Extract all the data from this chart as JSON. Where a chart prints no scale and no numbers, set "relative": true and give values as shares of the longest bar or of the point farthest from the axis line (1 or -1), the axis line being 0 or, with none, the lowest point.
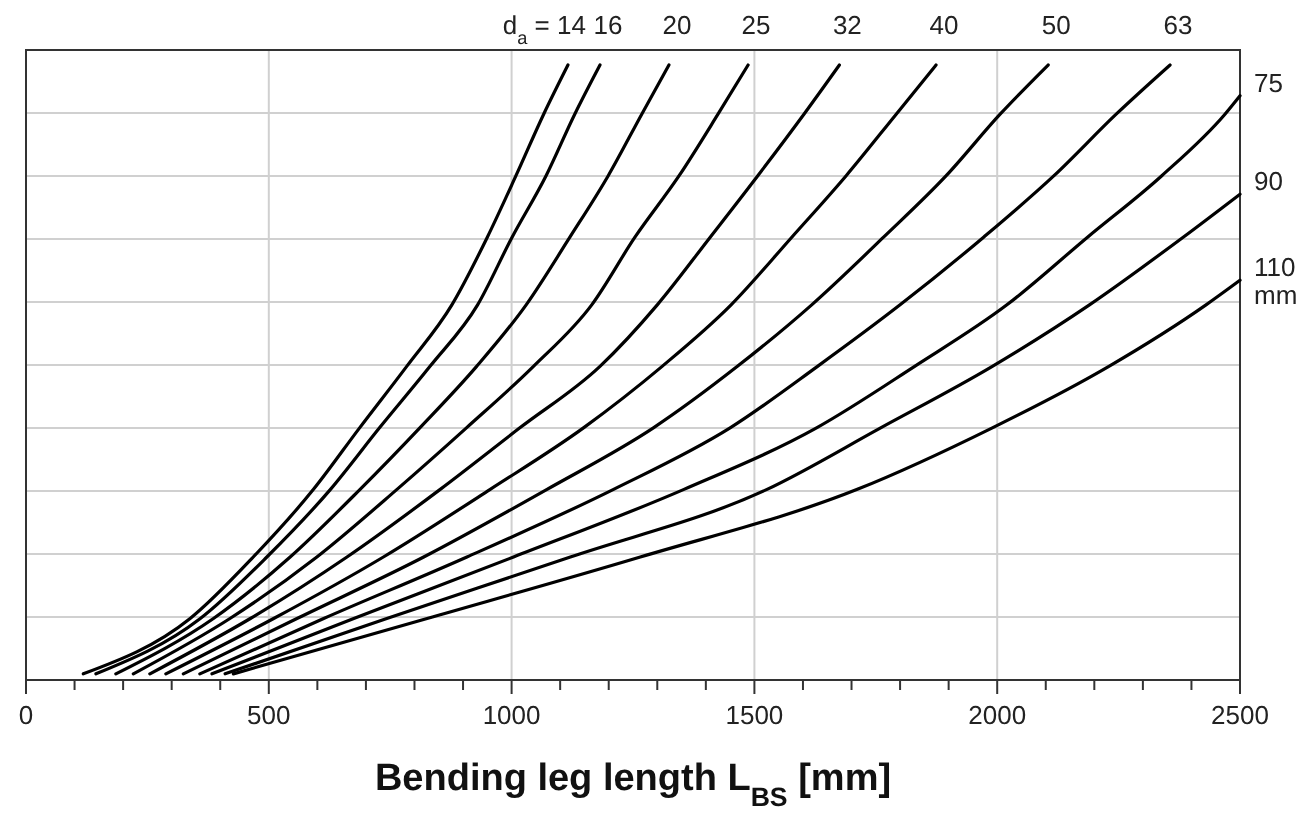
{
  "chart_data": {
    "type": "line",
    "relative": true,
    "xlabel": "Bending leg length L$_{BS}$ [mm]",
    "xlim": [
      0,
      2500
    ],
    "xticks": [
      0,
      {
        "value": 100,
        "label": null
      },
      {
        "value": 200,
        "label": null
      },
      {
        "value": 300,
        "label": null
      },
      {
        "value": 400,
        "label": null
      },
      500,
      {
        "value": 600,
        "label": null
      },
      {
        "value": 700,
        "label": null
      },
      {
        "value": 800,
        "label": null
      },
      {
        "value": 900,
        "label": null
      },
      1000,
      {
        "value": 1100,
        "label": null
      },
      {
        "value": 1200,
        "label": null
      },
      {
        "value": 1300,
        "label": null
      },
      {
        "value": 1400,
        "label": null
      },
      1500,
      {
        "value": 1600,
        "label": null
      },
      {
        "value": 1700,
        "label": null
      },
      {
        "value": 1800,
        "label": null
      },
      {
        "value": 1900,
        "label": null
      },
      2000,
      {
        "value": 2100,
        "label": null
      },
      {
        "value": 2200,
        "label": null
      },
      {
        "value": 2300,
        "label": null
      },
      {
        "value": 2400,
        "label": null
      },
      2500
    ],
    "grid": true,
    "marker": "none",
    "line_style": "solid",
    "annotations": [
      "mm"
    ],
    "series": [
      {
        "name": "d$_{a}$ = 14",
        "color": "#000000",
        "x": [
          118,
          338,
          468,
          592,
          687,
          784,
          877,
          950,
          1009,
          1066,
          1116
        ],
        "values": [
          0.01,
          0.1,
          0.2,
          0.31,
          0.41,
          0.51,
          0.61,
          0.72,
          0.82,
          0.92,
          1
        ]
      },
      {
        "name": "16",
        "color": "#000000",
        "x": [
          144,
          359,
          496,
          627,
          728,
          832,
          930,
          1001,
          1071,
          1130,
          1182
        ],
        "values": [
          0.01,
          0.1,
          0.2,
          0.31,
          0.41,
          0.51,
          0.61,
          0.72,
          0.82,
          0.92,
          1
        ]
      },
      {
        "name": "20",
        "color": "#000000",
        "x": [
          185,
          386,
          544,
          688,
          811,
          928,
          1030,
          1120,
          1199,
          1268,
          1324
        ],
        "values": [
          0.01,
          0.1,
          0.2,
          0.31,
          0.41,
          0.51,
          0.61,
          0.72,
          0.82,
          0.92,
          1
        ]
      },
      {
        "name": "25",
        "color": "#000000",
        "x": [
          221,
          420,
          599,
          764,
          907,
          1045,
          1165,
          1254,
          1345,
          1425,
          1487
        ],
        "values": [
          0.01,
          0.1,
          0.2,
          0.31,
          0.41,
          0.51,
          0.61,
          0.72,
          0.82,
          0.92,
          1
        ]
      },
      {
        "name": "32",
        "color": "#000000",
        "x": [
          255,
          462,
          661,
          853,
          1017,
          1182,
          1300,
          1409,
          1507,
          1602,
          1675
        ],
        "values": [
          0.01,
          0.1,
          0.2,
          0.31,
          0.41,
          0.51,
          0.61,
          0.72,
          0.82,
          0.92,
          1
        ]
      },
      {
        "name": "40",
        "color": "#000000",
        "x": [
          288,
          510,
          736,
          956,
          1148,
          1310,
          1452,
          1577,
          1689,
          1792,
          1874
        ],
        "values": [
          0.01,
          0.1,
          0.2,
          0.31,
          0.41,
          0.51,
          0.61,
          0.72,
          0.82,
          0.92,
          1
        ]
      },
      {
        "name": "50",
        "color": "#000000",
        "x": [
          324,
          558,
          819,
          1073,
          1292,
          1465,
          1618,
          1766,
          1895,
          2006,
          2105
        ],
        "values": [
          0.01,
          0.1,
          0.2,
          0.31,
          0.41,
          0.51,
          0.61,
          0.72,
          0.82,
          0.92,
          1
        ]
      },
      {
        "name": "63",
        "color": "#000000",
        "x": [
          358,
          613,
          908,
          1210,
          1450,
          1630,
          1800,
          1972,
          2117,
          2245,
          2356
        ],
        "values": [
          0.01,
          0.1,
          0.2,
          0.31,
          0.41,
          0.51,
          0.61,
          0.72,
          0.82,
          0.92,
          1
        ]
      },
      {
        "name": "75",
        "color": "#000000",
        "x": [
          383,
          675,
          1004,
          1355,
          1628,
          1830,
          2020,
          2186,
          2339,
          2469,
          2500
        ],
        "values": [
          0.01,
          0.1,
          0.2,
          0.31,
          0.41,
          0.51,
          0.61,
          0.72,
          0.82,
          0.92,
          0.95
        ]
      },
      {
        "name": "90",
        "color": "#000000",
        "x": [
          410,
          743,
          1121,
          1526,
          1760,
          1990,
          2190,
          2383,
          2500
        ],
        "values": [
          0.01,
          0.1,
          0.2,
          0.31,
          0.41,
          0.51,
          0.61,
          0.72,
          0.79
        ]
      },
      {
        "name": "110",
        "color": "#000000",
        "x": [
          427,
          826,
          1265,
          1712,
          1990,
          2230,
          2430,
          2500
        ],
        "values": [
          0.01,
          0.1,
          0.2,
          0.31,
          0.41,
          0.51,
          0.61,
          0.65
        ]
      }
    ]
  }
}
